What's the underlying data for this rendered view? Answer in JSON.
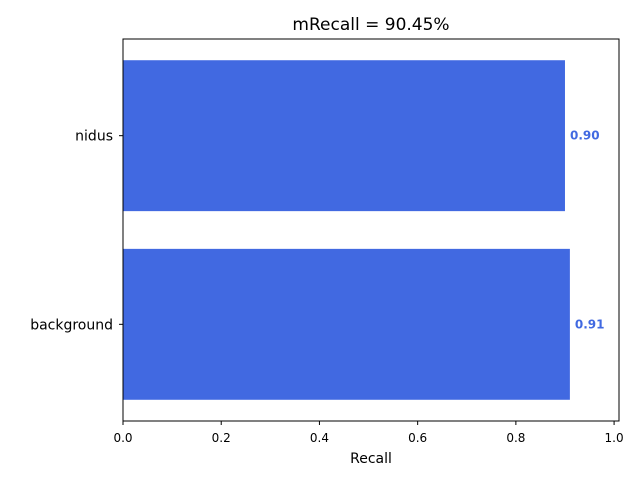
{
  "chart_data": {
    "type": "bar",
    "orientation": "horizontal",
    "title": "mRecall = 90.45%",
    "xlabel": "Recall",
    "ylabel": "",
    "categories": [
      "nidus",
      "background"
    ],
    "values": [
      0.9,
      0.91
    ],
    "data_labels": [
      "0.90",
      "0.91"
    ],
    "xlim": [
      0,
      1.01
    ],
    "xticks": [
      0.0,
      0.2,
      0.4,
      0.6,
      0.8,
      1.0
    ],
    "xtick_labels": [
      "0.0",
      "0.2",
      "0.4",
      "0.6",
      "0.8",
      "1.0"
    ],
    "grid": false,
    "legend": "none",
    "bar_color": "#4169E1",
    "label_color": "#4169E1"
  }
}
